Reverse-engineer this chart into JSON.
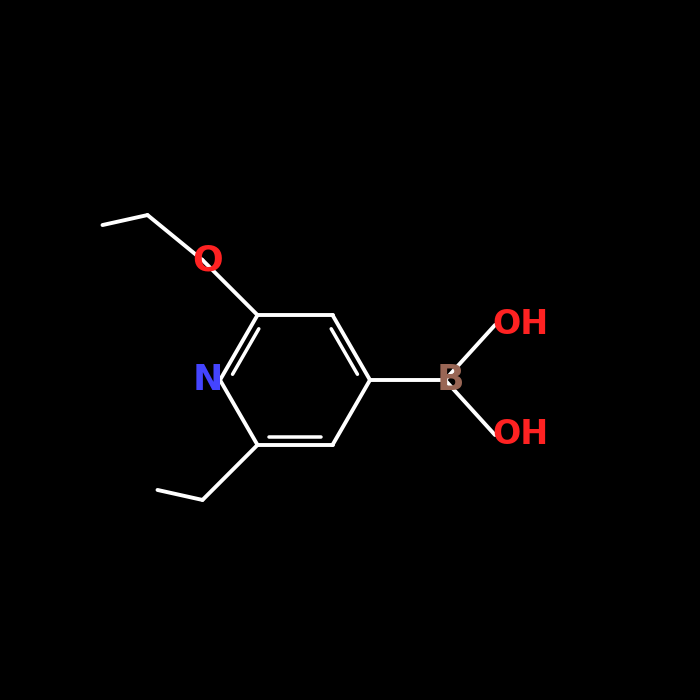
{
  "background_color": "#000000",
  "bond_color": "#ffffff",
  "atom_colors": {
    "N": "#4444ff",
    "O": "#ff2222",
    "B": "#996655",
    "OH": "#ff2222",
    "C": "#ffffff"
  },
  "fontsize": 28,
  "lw": 2.8
}
